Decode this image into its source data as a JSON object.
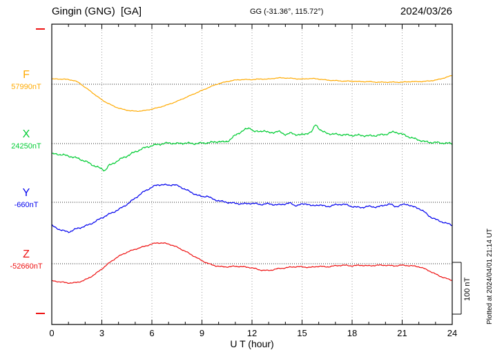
{
  "header": {
    "station": "Gingin (GNG)  [GA]",
    "coords": "GG (-31.36°, 115.72°)",
    "date": "2024/03/26"
  },
  "plotted_note": "Plotted at 2024/04/01 21:14 UT",
  "chart_data": {
    "type": "line",
    "title": "Gingin (GNG) [GA] magnetogram",
    "date": "2024/03/26",
    "xlabel": "U T (hour)",
    "x_range": [
      0,
      24
    ],
    "x_ticks": [
      0,
      3,
      6,
      9,
      12,
      15,
      18,
      21,
      24
    ],
    "grid": "dotted vertical at 3h steps, dotted horizontal baseline per trace",
    "scale_bar": {
      "label": "100 nT",
      "nT": 100
    },
    "points_format": "[hour UT, nT offset from base_value]",
    "series": [
      {
        "name": "F",
        "base_label": "57990nT",
        "base_value": 57990,
        "unit": "nT",
        "color": "#ffaa00",
        "points": [
          [
            0,
            10
          ],
          [
            0.5,
            10
          ],
          [
            1,
            9
          ],
          [
            1.5,
            5
          ],
          [
            2,
            -6
          ],
          [
            2.5,
            -18
          ],
          [
            3,
            -30
          ],
          [
            3.5,
            -39
          ],
          [
            4,
            -46
          ],
          [
            4.5,
            -50
          ],
          [
            5,
            -52
          ],
          [
            5.5,
            -51
          ],
          [
            6,
            -48
          ],
          [
            6.5,
            -44
          ],
          [
            7,
            -39
          ],
          [
            7.5,
            -33
          ],
          [
            8,
            -26
          ],
          [
            8.5,
            -19
          ],
          [
            9,
            -12
          ],
          [
            9.5,
            -5
          ],
          [
            10,
            1
          ],
          [
            10.5,
            5
          ],
          [
            11,
            8
          ],
          [
            11.5,
            9
          ],
          [
            12,
            9
          ],
          [
            12.5,
            10
          ],
          [
            13,
            10
          ],
          [
            13.5,
            12
          ],
          [
            14,
            12
          ],
          [
            14.5,
            11
          ],
          [
            15,
            10
          ],
          [
            15.5,
            11
          ],
          [
            16,
            10
          ],
          [
            16.5,
            8
          ],
          [
            17,
            7
          ],
          [
            17.5,
            6
          ],
          [
            18,
            6
          ],
          [
            18.5,
            5
          ],
          [
            19,
            5
          ],
          [
            19.5,
            4
          ],
          [
            20,
            4
          ],
          [
            20.5,
            4
          ],
          [
            21,
            4
          ],
          [
            21.5,
            5
          ],
          [
            22,
            5
          ],
          [
            22.5,
            6
          ],
          [
            23,
            8
          ],
          [
            23.5,
            12
          ],
          [
            24,
            17
          ]
        ]
      },
      {
        "name": "X",
        "base_label": "24250nT",
        "base_value": 24250,
        "unit": "nT",
        "color": "#00cc33",
        "points": [
          [
            0,
            -20
          ],
          [
            0.5,
            -21
          ],
          [
            1,
            -24
          ],
          [
            1.5,
            -28
          ],
          [
            2,
            -34
          ],
          [
            2.5,
            -42
          ],
          [
            3,
            -49
          ],
          [
            3.2,
            -51
          ],
          [
            3.4,
            -43
          ],
          [
            3.6,
            -40
          ],
          [
            4,
            -32
          ],
          [
            4.5,
            -24
          ],
          [
            5,
            -16
          ],
          [
            5.5,
            -9
          ],
          [
            6,
            -4
          ],
          [
            6.5,
            -1
          ],
          [
            7,
            1
          ],
          [
            7.5,
            0
          ],
          [
            8,
            1
          ],
          [
            8.5,
            0
          ],
          [
            9,
            1
          ],
          [
            9.5,
            2
          ],
          [
            10,
            4
          ],
          [
            10.3,
            3
          ],
          [
            10.6,
            6
          ],
          [
            11,
            16
          ],
          [
            11.3,
            22
          ],
          [
            11.6,
            27
          ],
          [
            11.9,
            30
          ],
          [
            12.1,
            24
          ],
          [
            12.4,
            23
          ],
          [
            12.7,
            25
          ],
          [
            13,
            21
          ],
          [
            13.3,
            22
          ],
          [
            13.6,
            23
          ],
          [
            14,
            18
          ],
          [
            14.3,
            20
          ],
          [
            14.6,
            18
          ],
          [
            15,
            17
          ],
          [
            15.3,
            20
          ],
          [
            15.6,
            24
          ],
          [
            15.8,
            36
          ],
          [
            16,
            30
          ],
          [
            16.2,
            24
          ],
          [
            16.5,
            20
          ],
          [
            17,
            18
          ],
          [
            17.5,
            17
          ],
          [
            18,
            16
          ],
          [
            18.5,
            16
          ],
          [
            19,
            15
          ],
          [
            19.5,
            16
          ],
          [
            20,
            18
          ],
          [
            20.3,
            21
          ],
          [
            20.6,
            22
          ],
          [
            21,
            18
          ],
          [
            21.5,
            12
          ],
          [
            22,
            7
          ],
          [
            22.5,
            3
          ],
          [
            23,
            2
          ],
          [
            23.5,
            1
          ],
          [
            24,
            0
          ]
        ]
      },
      {
        "name": "Y",
        "base_label": "-660nT",
        "base_value": -660,
        "unit": "nT",
        "color": "#0000ee",
        "points": [
          [
            0,
            -45
          ],
          [
            0.3,
            -50
          ],
          [
            0.6,
            -54
          ],
          [
            1,
            -57
          ],
          [
            1.2,
            -55
          ],
          [
            1.5,
            -51
          ],
          [
            2,
            -46
          ],
          [
            2.5,
            -39
          ],
          [
            3,
            -30
          ],
          [
            3.5,
            -22
          ],
          [
            4,
            -14
          ],
          [
            4.5,
            -4
          ],
          [
            5,
            8
          ],
          [
            5.5,
            20
          ],
          [
            6,
            29
          ],
          [
            6.3,
            33
          ],
          [
            6.6,
            34
          ],
          [
            7,
            33
          ],
          [
            7.3,
            34
          ],
          [
            7.6,
            31
          ],
          [
            8,
            25
          ],
          [
            8.5,
            17
          ],
          [
            9,
            11
          ],
          [
            9.3,
            12
          ],
          [
            9.6,
            7
          ],
          [
            10,
            3
          ],
          [
            10.5,
            0
          ],
          [
            11,
            -2
          ],
          [
            11.5,
            -3
          ],
          [
            12,
            -2
          ],
          [
            12.5,
            -4
          ],
          [
            13,
            -3
          ],
          [
            13.5,
            -5
          ],
          [
            14,
            -3
          ],
          [
            14.3,
            -2
          ],
          [
            14.6,
            -6
          ],
          [
            15,
            -4
          ],
          [
            15.3,
            -3
          ],
          [
            15.6,
            -7
          ],
          [
            16,
            -5
          ],
          [
            16.5,
            -8
          ],
          [
            17,
            -5
          ],
          [
            17.5,
            -4
          ],
          [
            18,
            -8
          ],
          [
            18.5,
            -10
          ],
          [
            19,
            -8
          ],
          [
            19.5,
            -9
          ],
          [
            20,
            -5
          ],
          [
            20.3,
            -4
          ],
          [
            20.6,
            -8
          ],
          [
            21,
            -5
          ],
          [
            21.3,
            -4
          ],
          [
            21.6,
            -8
          ],
          [
            22,
            -12
          ],
          [
            22.3,
            -18
          ],
          [
            22.6,
            -26
          ],
          [
            23,
            -33
          ],
          [
            23.5,
            -39
          ],
          [
            24,
            -44
          ]
        ]
      },
      {
        "name": "Z",
        "base_label": "-52660nT",
        "base_value": -52660,
        "unit": "nT",
        "color": "#ee1111",
        "points": [
          [
            0,
            -33
          ],
          [
            0.5,
            -35
          ],
          [
            1,
            -37
          ],
          [
            1.5,
            -36
          ],
          [
            2,
            -31
          ],
          [
            2.5,
            -22
          ],
          [
            3,
            -10
          ],
          [
            3.5,
            3
          ],
          [
            4,
            14
          ],
          [
            4.5,
            22
          ],
          [
            5,
            28
          ],
          [
            5.5,
            33
          ],
          [
            6,
            38
          ],
          [
            6.3,
            40
          ],
          [
            6.6,
            40
          ],
          [
            7,
            38
          ],
          [
            7.5,
            32
          ],
          [
            8,
            24
          ],
          [
            8.5,
            15
          ],
          [
            9,
            6
          ],
          [
            9.5,
            -1
          ],
          [
            10,
            -5
          ],
          [
            10.5,
            -6
          ],
          [
            11,
            -5
          ],
          [
            11.5,
            -6
          ],
          [
            12,
            -8
          ],
          [
            12.5,
            -12
          ],
          [
            13,
            -13
          ],
          [
            13.5,
            -10
          ],
          [
            14,
            -8
          ],
          [
            14.5,
            -6
          ],
          [
            15,
            -6
          ],
          [
            15.5,
            -7
          ],
          [
            16,
            -5
          ],
          [
            16.5,
            -6
          ],
          [
            17,
            -4
          ],
          [
            17.5,
            -3
          ],
          [
            18,
            -4
          ],
          [
            18.5,
            -3
          ],
          [
            19,
            -4
          ],
          [
            19.5,
            -3
          ],
          [
            20,
            -3
          ],
          [
            20.5,
            -4
          ],
          [
            21,
            -3
          ],
          [
            21.5,
            -4
          ],
          [
            22,
            -6
          ],
          [
            22.5,
            -12
          ],
          [
            23,
            -20
          ],
          [
            23.5,
            -27
          ],
          [
            24,
            -32
          ]
        ]
      }
    ]
  }
}
